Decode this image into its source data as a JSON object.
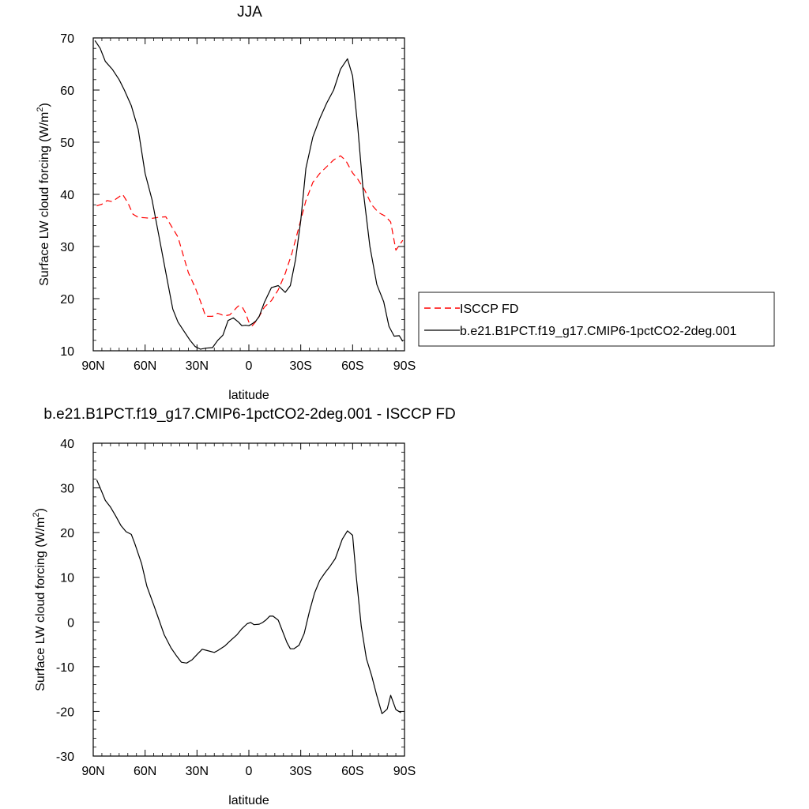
{
  "chart_data": [
    {
      "type": "line",
      "title": "JJA",
      "xlabel": "latitude",
      "ylabel": "Surface LW cloud forcing (W/m²)",
      "ylabel_main": "Surface LW cloud forcing (W/m",
      "ylabel_sup": "2",
      "ylabel_end": ")",
      "xlim": [
        90,
        -90
      ],
      "ylim": [
        10,
        70
      ],
      "x_ticks": [
        90,
        60,
        30,
        0,
        -30,
        -60,
        -90
      ],
      "x_tick_labels": [
        "90N",
        "60N",
        "30N",
        "0",
        "30S",
        "60S",
        "90S"
      ],
      "y_ticks": [
        10,
        20,
        30,
        40,
        50,
        60,
        70
      ],
      "y_tick_labels": [
        "10",
        "20",
        "30",
        "40",
        "50",
        "60",
        "70"
      ],
      "grid": false,
      "legend_position": "right",
      "series": [
        {
          "name": "ISCCP FD",
          "color": "#ff0000",
          "dash": "dashed",
          "x": [
            88,
            85,
            82,
            79,
            76,
            73,
            70,
            67,
            64,
            60,
            56,
            52,
            48,
            45,
            41,
            38,
            35,
            31,
            28,
            25,
            21,
            18,
            14,
            11,
            7,
            6,
            4,
            2,
            0,
            -2,
            -5,
            -9,
            -13,
            -17,
            -21,
            -25,
            -29,
            -33,
            -37,
            -41,
            -45,
            -49,
            -53,
            -56,
            -60,
            -63,
            -67,
            -71,
            -75,
            -79,
            -82,
            -85,
            -89
          ],
          "y": [
            37.8,
            38.1,
            38.8,
            38.6,
            39.3,
            40,
            38.4,
            36.2,
            35.6,
            35.5,
            35.4,
            35.6,
            35.7,
            34,
            31.8,
            28.4,
            25,
            22.1,
            19.5,
            16.6,
            16.6,
            17.2,
            16.7,
            16.9,
            18.3,
            18.6,
            18.5,
            17.3,
            15.5,
            14.8,
            16,
            18.4,
            19.6,
            21.7,
            24.8,
            28.8,
            33.8,
            38.8,
            42.3,
            44,
            45.3,
            46.6,
            47.4,
            46.5,
            44.1,
            42.9,
            40.8,
            38,
            36.5,
            35.8,
            34.7,
            29.3,
            31.2
          ]
        },
        {
          "name": "b.e21.B1PCT.f19_g17.CMIP6-1pctCO2-2deg.001",
          "color": "#000000",
          "dash": "solid",
          "x": [
            89,
            86,
            83,
            79,
            75,
            72,
            68,
            64,
            60,
            56,
            52,
            48,
            44,
            41,
            38,
            34,
            31,
            28,
            25,
            21,
            18,
            15,
            12,
            9,
            6,
            4,
            2,
            0,
            -2,
            -4,
            -6,
            -9,
            -13,
            -17,
            -21,
            -24,
            -27,
            -30,
            -33,
            -37,
            -41,
            -45,
            -49,
            -53,
            -57,
            -60,
            -63,
            -66,
            -70,
            -74,
            -78,
            -81,
            -84,
            -87,
            -89
          ],
          "y": [
            69.5,
            68,
            65.5,
            64,
            62,
            60,
            57,
            52.5,
            44,
            39,
            32,
            25,
            18,
            15.5,
            14,
            12,
            10.8,
            10.3,
            10.5,
            10.6,
            12,
            13,
            15.8,
            16.3,
            15.5,
            14.8,
            14.9,
            14.8,
            15.2,
            15.7,
            16.6,
            19.3,
            22.1,
            22.5,
            21.2,
            22.5,
            27.5,
            35,
            45,
            51,
            54.5,
            57.5,
            60,
            64,
            66,
            62.7,
            52.8,
            41,
            30,
            22.7,
            19.4,
            14.7,
            12.8,
            12.9,
            11.8
          ]
        }
      ]
    },
    {
      "type": "line",
      "title": "b.e21.B1PCT.f19_g17.CMIP6-1pctCO2-2deg.001 - ISCCP FD",
      "xlabel": "latitude",
      "ylabel": "Surface LW cloud forcing (W/m²)",
      "ylabel_main": "Surface LW cloud forcing (W/m",
      "ylabel_sup": "2",
      "ylabel_end": ")",
      "xlim": [
        90,
        -90
      ],
      "ylim": [
        -30,
        40
      ],
      "x_ticks": [
        90,
        60,
        30,
        0,
        -30,
        -60,
        -90
      ],
      "x_tick_labels": [
        "90N",
        "60N",
        "30N",
        "0",
        "30S",
        "60S",
        "90S"
      ],
      "y_ticks": [
        -30,
        -20,
        -10,
        0,
        10,
        20,
        30,
        40
      ],
      "y_tick_labels": [
        "-30",
        "-20",
        "-10",
        "0",
        "10",
        "20",
        "30",
        "40"
      ],
      "grid": false,
      "series": [
        {
          "color": "#000000",
          "dash": "solid",
          "x": [
            88,
            86,
            83,
            80,
            77,
            74,
            71,
            68,
            66,
            62,
            59,
            55,
            52,
            49,
            45,
            42,
            39,
            36,
            33,
            30,
            27,
            24,
            20,
            18,
            14,
            11,
            7,
            4,
            1,
            -1,
            -3,
            -6,
            -8,
            -10,
            -12,
            -14,
            -17,
            -20,
            -22,
            -24,
            -26,
            -29,
            -32,
            -35,
            -38,
            -41,
            -44,
            -47,
            -50,
            -54,
            -57,
            -60,
            -62,
            -65,
            -68,
            -71,
            -74,
            -77,
            -80,
            -82,
            -85,
            -88
          ],
          "y": [
            31.8,
            30,
            27.2,
            25.7,
            23.7,
            21.6,
            20.2,
            19.6,
            17.6,
            13,
            8,
            3.8,
            0.5,
            -2.8,
            -5.8,
            -7.5,
            -9,
            -9.2,
            -8.5,
            -7.3,
            -6.1,
            -6.4,
            -6.8,
            -6.4,
            -5.4,
            -4.3,
            -2.9,
            -1.5,
            -0.4,
            -0.1,
            -0.6,
            -0.5,
            -0.1,
            0.5,
            1.3,
            1.3,
            0.4,
            -2.6,
            -4.6,
            -6.0,
            -6.0,
            -5.2,
            -2.6,
            2.3,
            6.5,
            9.3,
            11,
            12.5,
            14.2,
            18.5,
            20.4,
            19.4,
            10.6,
            -1,
            -8.2,
            -12,
            -16.5,
            -20.5,
            -19.5,
            -16.4,
            -19.6,
            -20.3
          ]
        }
      ]
    }
  ]
}
